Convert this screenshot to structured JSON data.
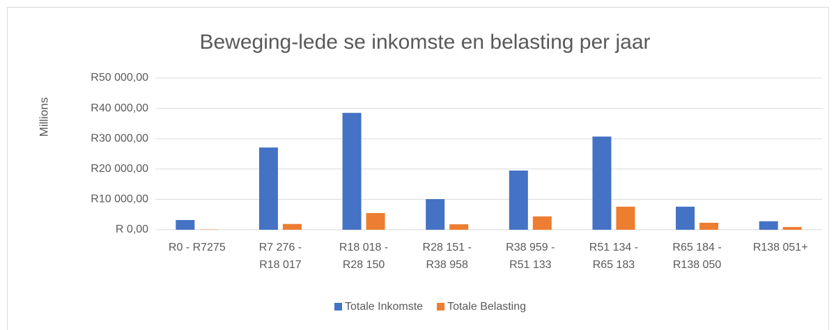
{
  "chart_data": {
    "type": "bar",
    "title": "Beweging-lede se inkomste en belasting per jaar",
    "y_label": "Millions",
    "categories": [
      "R0 - R7275",
      "R7 276 -\nR18 017",
      "R18 018 -\nR28 150",
      "R28 151 -\nR38 958",
      "R38 959 -\nR51 133",
      "R51 134 -\nR65 183",
      "R65 184 -\nR138 050",
      "R138 051+"
    ],
    "series": [
      {
        "name": "Totale Inkomste",
        "color": "#4472c4",
        "values": [
          3200,
          27100,
          38500,
          10100,
          19500,
          30700,
          7600,
          2800
        ]
      },
      {
        "name": "Totale Belasting",
        "color": "#ed7d31",
        "values": [
          100,
          1900,
          5500,
          1800,
          4400,
          7600,
          2300,
          900
        ]
      }
    ],
    "ylim": [
      0,
      50000
    ],
    "yticks": [
      {
        "value": 0,
        "label": "R 0,00"
      },
      {
        "value": 10000,
        "label": "R10 000,00"
      },
      {
        "value": 20000,
        "label": "R20 000,00"
      },
      {
        "value": 30000,
        "label": "R30 000,00"
      },
      {
        "value": 40000,
        "label": "R40 000,00"
      },
      {
        "value": 50000,
        "label": "R50 000,00"
      }
    ],
    "grid": true,
    "legend": "bottom"
  }
}
